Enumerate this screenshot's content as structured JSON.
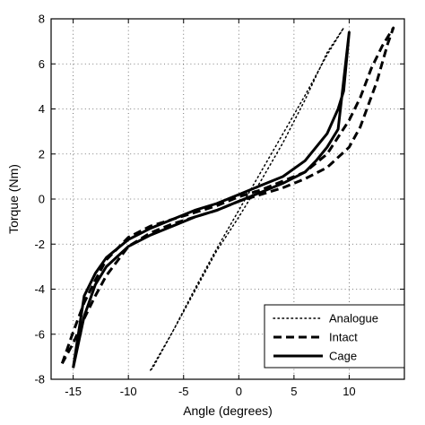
{
  "chart_data": {
    "type": "line",
    "title": "",
    "xlabel": "Angle (degrees)",
    "ylabel": "Torque (Nm)",
    "xlim": [
      -17,
      15
    ],
    "ylim": [
      -8,
      8
    ],
    "grid": true,
    "legend_position": "bottom-right",
    "x_ticks": [
      -15,
      -10,
      -5,
      0,
      5,
      10
    ],
    "x_tick_labels": [
      "-15",
      "-10",
      "-5",
      "0",
      "5",
      "10"
    ],
    "y_ticks": [
      -8,
      -6,
      -4,
      -2,
      0,
      2,
      4,
      6,
      8
    ],
    "y_tick_labels": [
      "-8",
      "-6",
      "-4",
      "-2",
      "0",
      "2",
      "4",
      "6",
      "8"
    ],
    "series": [
      {
        "name": "Analogue",
        "style": "dotted",
        "x": [
          -8,
          -6,
          -4,
          -2,
          0,
          2,
          4,
          6,
          8,
          9.5,
          8,
          6,
          4,
          2,
          0,
          -2,
          -4,
          -6,
          -7.8,
          -8
        ],
        "y": [
          -7.6,
          -5.9,
          -4.1,
          -2.3,
          -0.8,
          0.8,
          2.5,
          4.4,
          6.5,
          7.6,
          6.4,
          4.6,
          2.9,
          1.2,
          -0.5,
          -2.2,
          -4.0,
          -5.9,
          -7.5,
          -7.6
        ]
      },
      {
        "name": "Intact",
        "style": "dashed",
        "x": [
          -16,
          -15,
          -14,
          -13,
          -12,
          -10,
          -8,
          -6,
          -4,
          -2,
          0,
          2,
          4,
          6,
          8,
          10,
          11,
          12,
          13,
          14,
          13.5,
          12.5,
          11,
          10,
          8,
          6,
          4,
          2,
          0,
          -2,
          -4,
          -6,
          -8,
          -10,
          -12,
          -13,
          -14,
          -15,
          -16
        ],
        "y": [
          -7.3,
          -5.9,
          -4.6,
          -3.6,
          -2.7,
          -1.7,
          -1.2,
          -0.9,
          -0.6,
          -0.3,
          0.1,
          0.4,
          0.8,
          1.2,
          2.0,
          3.5,
          4.5,
          5.8,
          6.8,
          7.6,
          6.9,
          5.2,
          3.2,
          2.3,
          1.4,
          0.9,
          0.5,
          0.2,
          -0.1,
          -0.5,
          -0.8,
          -1.1,
          -1.5,
          -2.1,
          -3.4,
          -4.3,
          -5.3,
          -6.4,
          -7.3
        ]
      },
      {
        "name": "Cage",
        "style": "solid",
        "x": [
          -15,
          -14,
          -13,
          -12,
          -10,
          -8,
          -6,
          -4,
          -2,
          0,
          2,
          4,
          6,
          7,
          8,
          9,
          10,
          9.5,
          9,
          8,
          7,
          6,
          4,
          2,
          0,
          -2,
          -4,
          -6,
          -8,
          -10,
          -12,
          -13,
          -14,
          -15
        ],
        "y": [
          -7.5,
          -5.2,
          -3.8,
          -3.0,
          -2.1,
          -1.6,
          -1.2,
          -0.8,
          -0.5,
          -0.1,
          0.3,
          0.7,
          1.2,
          1.7,
          2.3,
          3.1,
          7.4,
          4.8,
          4.0,
          2.9,
          2.3,
          1.7,
          1.0,
          0.6,
          0.2,
          -0.2,
          -0.5,
          -0.9,
          -1.3,
          -1.8,
          -2.6,
          -3.3,
          -4.3,
          -7.5
        ]
      }
    ]
  }
}
